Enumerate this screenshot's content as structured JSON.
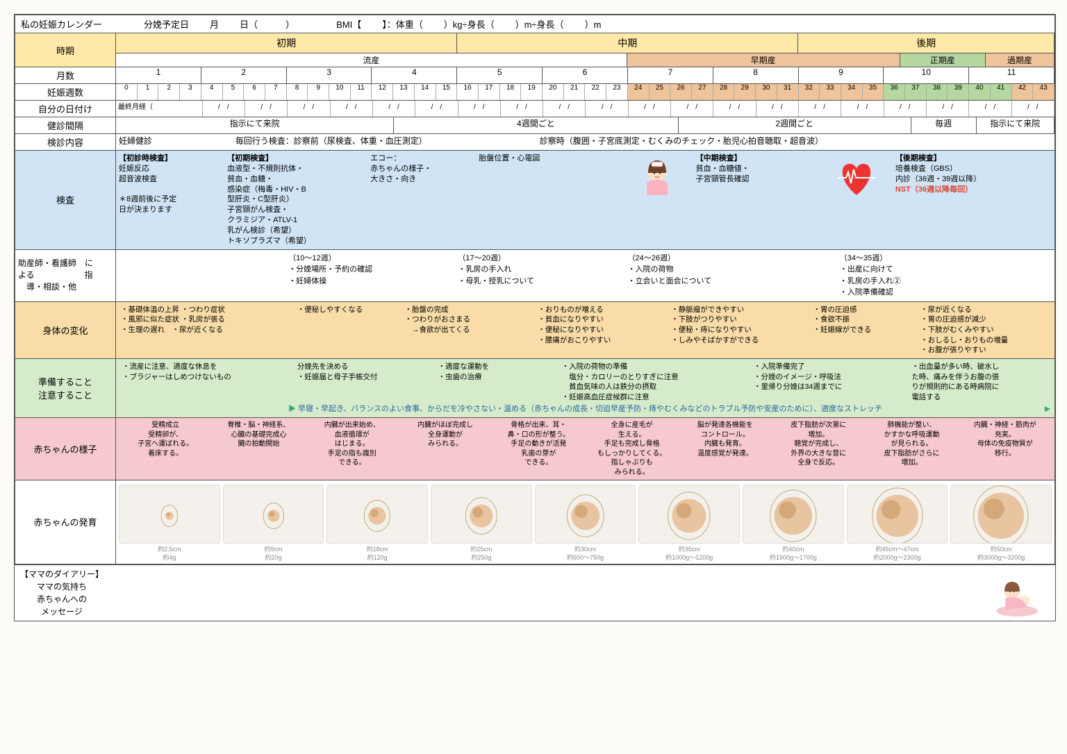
{
  "header": {
    "title": "私の妊娠カレンダー",
    "due_label": "分娩予定日",
    "month_unit": "月",
    "day_unit": "日（",
    "day_close": "）",
    "bmi_label": "BMI【",
    "bmi_close": "】：体重（",
    "weight_unit": "）kg÷身長（",
    "height_unit1": "）m÷身長（",
    "height_unit2": "）m"
  },
  "rows": {
    "period": "時期",
    "months": "月数",
    "weeks": "妊娠週数",
    "own_date": "自分の日付け",
    "checkup_interval": "健診間隔",
    "checkup_content": "検診内容",
    "exam": "検査",
    "midwife": "助産師・看護師　に\nよる　　　　　　指\n　導・相談・他",
    "body": "身体の変化",
    "prep": "準備すること\n注意すること",
    "baby": "赤ちゃんの様子",
    "growth": "赤ちゃんの発育"
  },
  "periods": {
    "early": "初期",
    "mid": "中期",
    "late": "後期"
  },
  "sub_periods": {
    "miscarriage": "流産",
    "preterm": "早期産",
    "fullterm": "正期産",
    "postterm": "過期産"
  },
  "months": [
    "1",
    "2",
    "3",
    "4",
    "5",
    "6",
    "7",
    "8",
    "9",
    "10",
    "11"
  ],
  "weeks": [
    "0",
    "1",
    "2",
    "3",
    "4",
    "5",
    "6",
    "7",
    "8",
    "9",
    "10",
    "11",
    "12",
    "13",
    "14",
    "15",
    "16",
    "17",
    "18",
    "19",
    "20",
    "21",
    "22",
    "23",
    "24",
    "25",
    "26",
    "27",
    "28",
    "29",
    "30",
    "31",
    "32",
    "33",
    "34",
    "35",
    "36",
    "37",
    "38",
    "39",
    "40",
    "41",
    "42",
    "43"
  ],
  "own_date_first": "最終月経（",
  "checkup_intervals": [
    {
      "w": 4.3,
      "t": "指示にて来院"
    },
    {
      "w": 4.4,
      "t": "4週間ごと"
    },
    {
      "w": 3.6,
      "t": "2週間ごと"
    },
    {
      "w": 1.0,
      "t": "毎週"
    },
    {
      "w": 1.2,
      "t": "指示にて来院"
    }
  ],
  "checkup_content": {
    "c1": "妊婦健診",
    "c2": "毎回行う検査：診察前（尿検査、体重・血圧測定）",
    "c3": "診察時（腹囲・子宮底測定・むくみのチェック・胎児心拍音聴取・超音波）"
  },
  "exam": {
    "col1_title": "【初診時検査】",
    "col1_body": "妊娠反応\n超音波検査\n\n＊8週前後に予定\n日が決まります",
    "col2_title": "【初期検査】",
    "col2_body": "血液型・不規則抗体・\n貧血・血糖・\n感染症（梅毒・HIV・B\n型肝炎・C型肝炎）\n子宮頸がん検査・\nクラミジア・ATLV-1\n乳がん検診（希望）\nトキソプラズマ（希望）",
    "col3_body": "エコー：\n赤ちゃんの様子・\n大きさ・向き",
    "col4_body": "胎盤位置・心電図",
    "col5_title": "【中期検査】",
    "col5_body": "貧血・血糖値・\n子宮頸管長確認",
    "col6_title": "【後期検査】",
    "col6_body": "培養検査（GBS）\n内診（36週・39週以降）",
    "nst": "NST（36週以降毎回）"
  },
  "midwife": {
    "c1": "（10～12週）\n・分娩場所・予約の確認\n・妊婦体操",
    "c2": "（17～20週）\n・乳房の手入れ\n・母乳・授乳について",
    "c3": "（24～26週）\n・入院の荷物\n・立会いと面会について",
    "c4": "（34～35週）\n・出産に向けて\n・乳房の手入れ②\n・入院準備確認"
  },
  "body_changes": {
    "c1": "・基礎体温の上昇 ・つわり症状\n・風邪に似た症状 ・乳房が張る\n・生理の遅れ　・尿が近くなる",
    "c2": "・便秘しやすくなる",
    "c3": "・胎盤の完成\n・つわりがおさまる\n　→食欲が出てくる",
    "c4": "・おりものが増える\n・貧血になりやすい\n・便秘になりやすい\n・腰痛がおこりやすい",
    "c5": "・静脈瘤ができやすい\n・下肢がつりやすい\n・便秘・痔になりやすい\n・しみやそばかすができる",
    "c6": "・胃の圧迫感\n・食欲不振\n・妊娠線ができる",
    "c7": "・尿が近くなる\n・胃の圧迫感が減少\n・下肢がむくみやすい\n・おしるし・おりもの増量\n・お腹が張りやすい"
  },
  "prep": {
    "c1": "・流産に注意、適度な休息を\n・ブラジャーはしめつけないもの",
    "c2": "分娩先を決める\n・妊娠届と母子手帳交付",
    "c3": "・適度な運動を\n・虫歯の治療",
    "c4": "・入院の荷物の準備\n　塩分・カロリーのとりすぎに注意\n　貧血気味の人は鉄分の摂取\n・妊娠高血圧症候群に注意",
    "c5": "・入院準備完了\n・分娩のイメージ・呼吸法\n・里帰り分娩は34週までに",
    "c6": "・出血量が多い時、破水し\nた時、痛みを伴うお腹の張\nりが規則的にある時病院に\n電話する",
    "banner": "早寝・早起き、バランスのよい食事、からだを冷やさない・温める（赤ちゃんの成長・切迫早産予防・痔やむくみなどのトラブル予防や安産のために）、適度なストレッチ"
  },
  "baby": {
    "c1": "受精成立\n受精卵が、\n子宮へ運ばれる。\n着床する。",
    "c2": "脊椎・脳・神経系、\n心臓の基礎完成心\n臓の拍動開始",
    "c3": "内臓が出来始め、\n血液循環が\nはじまる。\n手足の指も識別\nできる。",
    "c4": "内臓がほぼ完成し\n全身運動が\nみられる。",
    "c5": "骨格が出来、耳・\n鼻・口の形が整う。\n手足の動きが活発\n乳歯の芽が\nできる。",
    "c6": "全身に産毛が\n生える。\n手足も完成し骨格\nもしっかりしてくる。\n指しゃぶりも\nみられる。",
    "c7": "脳が発達各機能を\nコントロール。\n内臓も発育。\n温度感覚が発達。",
    "c8": "皮下脂肪が次第に\n増加。\n聴覚が完成し、\n外界の大きな音に\n全身で反応。",
    "c9": "肺機能が整い、\nかすかな呼吸運動\nが見られる。\n皮下脂肪がさらに\n増加。",
    "c10": "内臓・神経・筋肉が\n充実。\n母体の免疫物質が\n移行。"
  },
  "growth": [
    {
      "size": "約2.5cm",
      "weight": "約4g",
      "r": 6
    },
    {
      "size": "約9cm",
      "weight": "約20g",
      "r": 9
    },
    {
      "size": "約18cm",
      "weight": "約120g",
      "r": 13
    },
    {
      "size": "約25cm",
      "weight": "約250g",
      "r": 17
    },
    {
      "size": "約30cm",
      "weight": "約600～750g",
      "r": 21
    },
    {
      "size": "約35cm",
      "weight": "約1000g～1200g",
      "r": 25
    },
    {
      "size": "約40cm",
      "weight": "約1500g～1700g",
      "r": 28
    },
    {
      "size": "約45cm～47cm",
      "weight": "約2000g～2300g",
      "r": 31
    },
    {
      "size": "約50cm",
      "weight": "約3000g～3200g",
      "r": 34
    }
  ],
  "diary": {
    "title": "【ママのダイアリー】",
    "l1": "ママの気持ち",
    "l2": "赤ちゃんへの",
    "l3": "メッセージ"
  },
  "colors": {
    "period_bg": "#ffe9a8",
    "preterm_bg": "#f0c49a",
    "fullterm_bg": "#b5d8a0",
    "exam_bg": "#d0e4f5",
    "body_bg": "#f9dca8",
    "prep_bg": "#d6ebc9",
    "baby_bg": "#f5c9ce",
    "nst": "#d43"
  }
}
